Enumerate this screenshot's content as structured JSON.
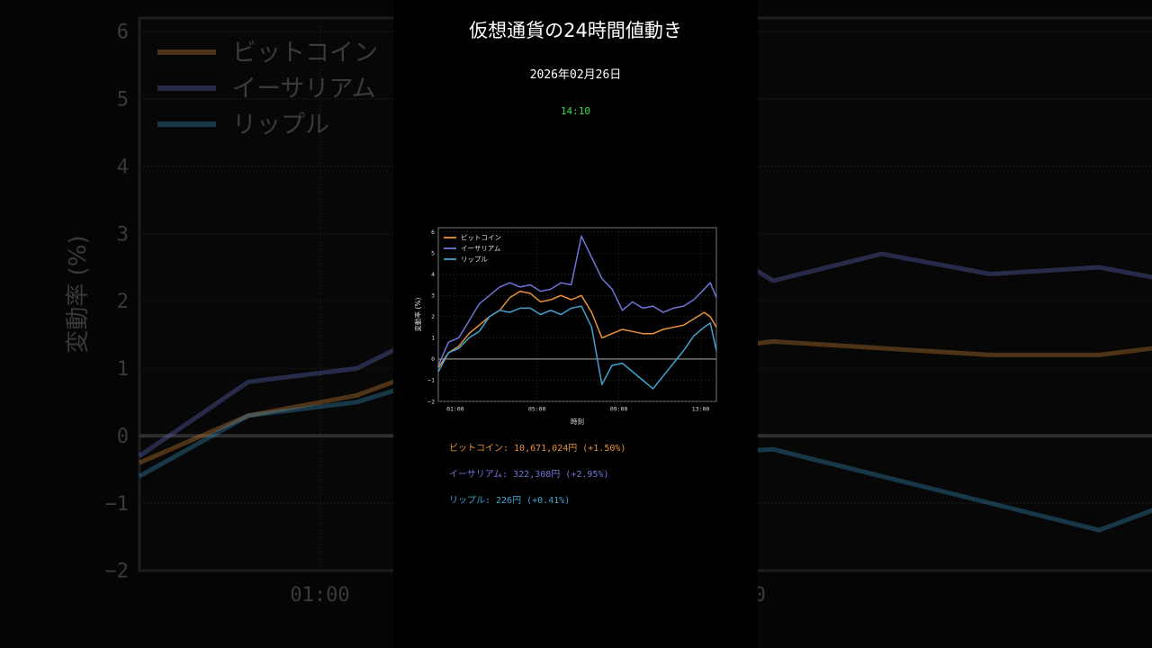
{
  "title": "仮想通貨の24時間値動き",
  "date": "2026年02月26日",
  "time": "14:10",
  "colors": {
    "btc": "#e8913a",
    "eth": "#6f75d8",
    "xrp": "#3fa3cf",
    "time": "#3ddc4a"
  },
  "chart_data": {
    "type": "line",
    "title": "",
    "xlabel": "時刻",
    "ylabel": "変動率 (%)",
    "xlim": [
      0,
      13.6
    ],
    "ylim": [
      -2,
      6.2
    ],
    "xticks": [
      {
        "v": 0.83,
        "label": "01:00"
      },
      {
        "v": 4.83,
        "label": "05:00"
      },
      {
        "v": 8.83,
        "label": "09:00"
      },
      {
        "v": 12.83,
        "label": "13:00"
      }
    ],
    "yticks": [
      -2,
      -1,
      0,
      1,
      2,
      3,
      4,
      5,
      6
    ],
    "grid": true,
    "legend_position": "top-left",
    "x": [
      0,
      0.5,
      1,
      1.5,
      2,
      2.5,
      3,
      3.5,
      4,
      4.5,
      5,
      5.5,
      6,
      6.5,
      7,
      7.5,
      8,
      8.5,
      9,
      9.5,
      10,
      10.5,
      11,
      11.5,
      12,
      12.5,
      13,
      13.3,
      13.6
    ],
    "series": [
      {
        "name": "ビットコイン",
        "color": "#e8913a",
        "values": [
          -0.4,
          0.3,
          0.6,
          1.2,
          1.6,
          2.0,
          2.3,
          2.9,
          3.2,
          3.1,
          2.7,
          2.8,
          3.0,
          2.8,
          3.0,
          2.2,
          1.0,
          1.2,
          1.4,
          1.3,
          1.2,
          1.2,
          1.4,
          1.5,
          1.6,
          1.9,
          2.2,
          2.0,
          1.5
        ]
      },
      {
        "name": "イーサリアム",
        "color": "#6f75d8",
        "values": [
          -0.3,
          0.8,
          1.0,
          1.8,
          2.6,
          3.0,
          3.4,
          3.6,
          3.4,
          3.5,
          3.2,
          3.3,
          3.6,
          3.5,
          5.8,
          4.8,
          3.8,
          3.3,
          2.3,
          2.7,
          2.4,
          2.5,
          2.2,
          2.4,
          2.5,
          2.8,
          3.3,
          3.6,
          2.9
        ]
      },
      {
        "name": "リップル",
        "color": "#3fa3cf",
        "values": [
          -0.6,
          0.3,
          0.5,
          1.0,
          1.3,
          2.0,
          2.3,
          2.2,
          2.4,
          2.4,
          2.1,
          2.3,
          2.1,
          2.4,
          2.5,
          1.5,
          -1.2,
          -0.3,
          -0.2,
          -0.6,
          -1.0,
          -1.4,
          -0.8,
          -0.2,
          0.4,
          1.1,
          1.5,
          1.7,
          0.4
        ]
      }
    ]
  },
  "prices": [
    {
      "text": "ビットコイン: 10,671,024円 (+1.50%)",
      "color": "#e8913a"
    },
    {
      "text": "イーサリアム: 322,308円 (+2.95%)",
      "color": "#6f75d8"
    },
    {
      "text": "リップル: 226円 (+0.41%)",
      "color": "#3fa3cf"
    }
  ]
}
